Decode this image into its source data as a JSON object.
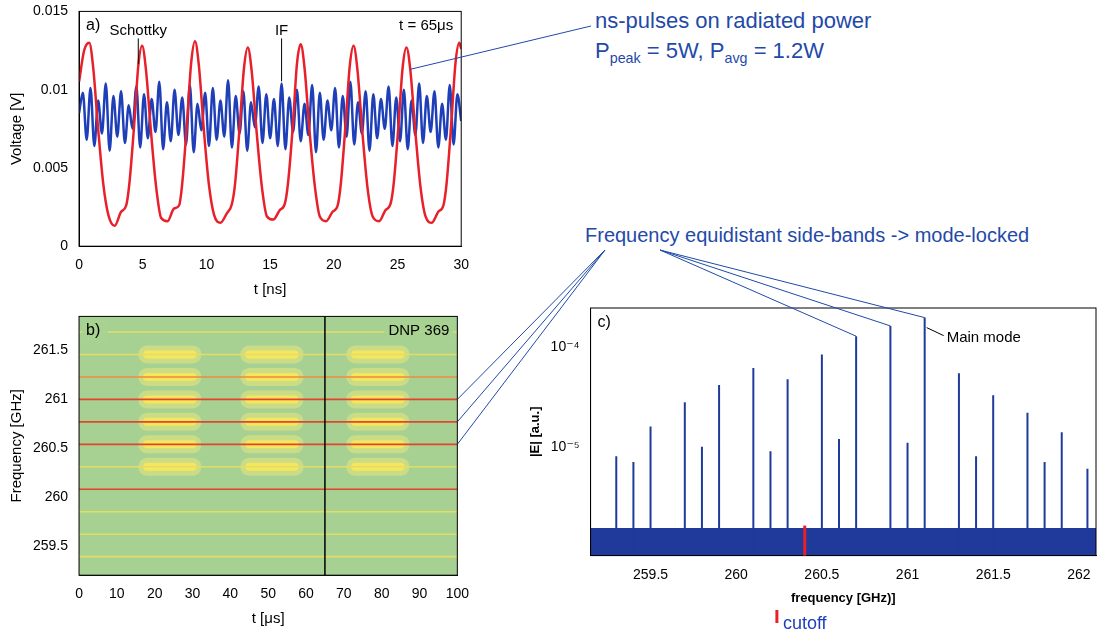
{
  "chart_data": [
    {
      "type": "line",
      "label": "a)",
      "xlabel": "t [ns]",
      "ylabel": "Voltage [V]",
      "xlim": [
        0,
        30
      ],
      "xticks": [
        0,
        5,
        10,
        15,
        20,
        25,
        30
      ],
      "ylim": [
        0,
        0.015
      ],
      "yticks": [
        0,
        0.005,
        0.01,
        0.015
      ],
      "annotations": [
        "t = 65μs"
      ],
      "callout": [
        "ns-pulses on radiated power",
        "Ppeak = 5W, Pavg = 1.2W"
      ],
      "series": [
        {
          "name": "Schottky",
          "color": "#e8202a",
          "x": [
            0,
            0.4,
            0.8,
            1.1,
            1.5,
            1.9,
            2.3,
            2.8,
            3.3,
            3.7,
            3.95,
            4.35,
            4.65,
            4.95,
            5.25,
            5.65,
            6.05,
            6.45,
            6.95,
            7.45,
            7.85,
            8.1,
            8.5,
            8.8,
            9.1,
            9.4,
            9.8,
            10.2,
            10.6,
            11.1,
            11.6,
            12.0,
            12.25,
            12.65,
            12.95,
            13.25,
            13.55,
            13.95,
            14.35,
            14.75,
            15.25,
            15.75,
            16.15,
            16.4,
            16.8,
            17.1,
            17.4,
            17.7,
            18.1,
            18.5,
            18.9,
            19.4,
            19.9,
            20.3,
            20.55,
            20.95,
            21.25,
            21.55,
            21.85,
            22.25,
            22.65,
            23.05,
            23.55,
            24.05,
            24.45,
            24.7,
            25.1,
            25.4,
            25.7,
            26.0,
            26.4,
            26.8,
            27.2,
            27.7,
            28.2,
            28.6,
            28.85,
            29.25,
            29.55,
            29.85,
            30
          ],
          "values": [
            0.0105,
            0.0125,
            0.013,
            0.0115,
            0.0075,
            0.004,
            0.002,
            0.0013,
            0.0022,
            0.0026,
            0.004,
            0.008,
            0.0115,
            0.0128,
            0.0113,
            0.0073,
            0.0038,
            0.0018,
            0.0016,
            0.0024,
            0.0026,
            0.004,
            0.0082,
            0.0117,
            0.0131,
            0.0116,
            0.0074,
            0.0039,
            0.002,
            0.0015,
            0.0021,
            0.0027,
            0.004,
            0.0081,
            0.0114,
            0.0127,
            0.0112,
            0.0072,
            0.0038,
            0.0019,
            0.0017,
            0.0023,
            0.0027,
            0.004,
            0.0079,
            0.0116,
            0.0129,
            0.0114,
            0.0073,
            0.0039,
            0.0019,
            0.0016,
            0.0022,
            0.0026,
            0.004,
            0.0081,
            0.0115,
            0.0128,
            0.0113,
            0.0072,
            0.0037,
            0.0019,
            0.0016,
            0.0023,
            0.0027,
            0.004,
            0.008,
            0.0114,
            0.0127,
            0.0113,
            0.0073,
            0.0038,
            0.0019,
            0.0015,
            0.0022,
            0.0026,
            0.004,
            0.0082,
            0.0117,
            0.013,
            0.0126
          ]
        },
        {
          "name": "IF",
          "color": "#1f3fb8",
          "x": [
            0,
            0.3,
            0.6,
            0.9,
            1.2,
            1.5,
            1.8,
            2.1,
            2.4,
            2.7,
            3,
            3.3,
            3.6,
            3.9,
            4.2,
            4.5,
            4.8,
            5.1,
            5.4,
            5.7,
            6,
            6.3,
            6.6,
            6.9,
            7.2,
            7.5,
            7.8,
            8.1,
            8.4,
            8.7,
            9,
            9.3,
            9.6,
            9.9,
            10.2,
            10.5,
            10.8,
            11.1,
            11.4,
            11.7,
            12,
            12.3,
            12.6,
            12.9,
            13.2,
            13.5,
            13.8,
            14.1,
            14.4,
            14.7,
            15,
            15.3,
            15.6,
            15.9,
            16.2,
            16.5,
            16.8,
            17.1,
            17.4,
            17.7,
            18,
            18.3,
            18.6,
            18.9,
            19.2,
            19.5,
            19.8,
            20.1,
            20.4,
            20.7,
            21,
            21.3,
            21.6,
            21.9,
            22.2,
            22.5,
            22.8,
            23.1,
            23.4,
            23.7,
            24,
            24.3,
            24.6,
            24.9,
            25.2,
            25.5,
            25.8,
            26.1,
            26.4,
            26.7,
            27,
            27.3,
            27.6,
            27.9,
            28.2,
            28.5,
            28.8,
            29.1,
            29.4,
            29.7,
            30
          ],
          "values": [
            0.0085,
            0.0098,
            0.0068,
            0.0101,
            0.0064,
            0.0093,
            0.0072,
            0.0104,
            0.0061,
            0.0096,
            0.007,
            0.0099,
            0.0066,
            0.009,
            0.0075,
            0.0102,
            0.0063,
            0.0097,
            0.0069,
            0.0094,
            0.0073,
            0.0105,
            0.0062,
            0.0092,
            0.0067,
            0.01,
            0.0071,
            0.0095,
            0.0065,
            0.0103,
            0.006,
            0.0091,
            0.0074,
            0.0098,
            0.0064,
            0.0101,
            0.0068,
            0.0093,
            0.007,
            0.0106,
            0.0063,
            0.0096,
            0.0072,
            0.0099,
            0.0061,
            0.0092,
            0.0076,
            0.0102,
            0.0066,
            0.0097,
            0.0069,
            0.0094,
            0.0064,
            0.0104,
            0.0062,
            0.0095,
            0.0073,
            0.01,
            0.0067,
            0.0091,
            0.0071,
            0.0103,
            0.006,
            0.0098,
            0.0068,
            0.0093,
            0.0074,
            0.0101,
            0.0063,
            0.0096,
            0.007,
            0.0105,
            0.0065,
            0.0092,
            0.0072,
            0.0099,
            0.0061,
            0.0097,
            0.0069,
            0.0094,
            0.0075,
            0.0102,
            0.0064,
            0.0095,
            0.0067,
            0.01,
            0.0062,
            0.0093,
            0.0071,
            0.0104,
            0.0066,
            0.0096,
            0.0073,
            0.0099,
            0.0063,
            0.0091,
            0.0068,
            0.0103,
            0.0065,
            0.0097,
            0.008
          ]
        }
      ]
    },
    {
      "type": "spectrogram",
      "label": "b)",
      "xlabel": "t [μs]",
      "ylabel": "Frequency [GHz]",
      "xlim": [
        0,
        100
      ],
      "xticks": [
        0,
        10,
        20,
        30,
        40,
        50,
        60,
        70,
        80,
        90,
        100
      ],
      "ylim": [
        259.2,
        261.85
      ],
      "yticks": [
        259.5,
        260,
        260.5,
        261,
        261.5
      ],
      "annotations": [
        "DNP 369"
      ],
      "time_marker": 65,
      "lines": {
        "frequency": [
          259.39,
          259.62,
          259.85,
          260.08,
          260.31,
          260.54,
          260.77,
          261.0,
          261.23,
          261.46,
          261.69
        ],
        "colors": [
          "#e6dc64",
          "#e6dc64",
          "#e6dc64",
          "#e2452b",
          "#e6dc64",
          "#e2452b",
          "#e2452b",
          "#e2452b",
          "#f08a3c",
          "#e6dc64",
          "#e6dc64"
        ]
      },
      "bursts": [
        {
          "t": [
            18,
            30
          ],
          "frequency": [
            260.2,
            261.6
          ]
        },
        {
          "t": [
            45,
            57
          ],
          "frequency": [
            260.2,
            261.6
          ]
        },
        {
          "t": [
            73,
            85
          ],
          "frequency": [
            260.2,
            261.6
          ]
        }
      ],
      "callout_lines": [
        260.54,
        260.77,
        261.0
      ]
    },
    {
      "type": "stem",
      "label": "c)",
      "xlabel": "frequency [GHz)]",
      "ylabel": "|E| [a.u.]",
      "log": "y",
      "color": "#1f3a9a",
      "xlim": [
        259.15,
        262.1
      ],
      "xticks": [
        259.5,
        260,
        260.5,
        261,
        261.5,
        262
      ],
      "ylim": [
        8e-07,
        0.00025
      ],
      "yticks": [
        {
          "value": 1e-05,
          "label": "10⁻⁵"
        },
        {
          "value": 0.0001,
          "label": "10⁻⁴"
        }
      ],
      "x": [
        259.3,
        259.4,
        259.5,
        259.7,
        259.8,
        259.9,
        260.1,
        260.2,
        260.3,
        260.5,
        260.6,
        260.7,
        260.9,
        261.0,
        261.1,
        261.3,
        261.4,
        261.5,
        261.7,
        261.8,
        261.9,
        262.05
      ],
      "values": [
        8e-06,
        7e-06,
        1.6e-05,
        2.8e-05,
        1e-05,
        4.2e-05,
        6.2e-05,
        9e-06,
        4.8e-05,
        8.5e-05,
        1.2e-05,
        0.00013,
        0.000165,
        1.1e-05,
        0.0002,
        5.5e-05,
        8e-06,
        3.3e-05,
        2.2e-05,
        7e-06,
        1.4e-05,
        6e-06
      ],
      "noise_floor": 1.5e-06,
      "annotations": [
        {
          "text": "Main mode",
          "x": 261.1
        }
      ],
      "cutoff": {
        "x": 260.4,
        "label": "cutoff"
      },
      "callout": "Frequency equidistant side-bands -> mode-locked",
      "callout_peaks": [
        260.7,
        260.9,
        261.1
      ]
    }
  ]
}
